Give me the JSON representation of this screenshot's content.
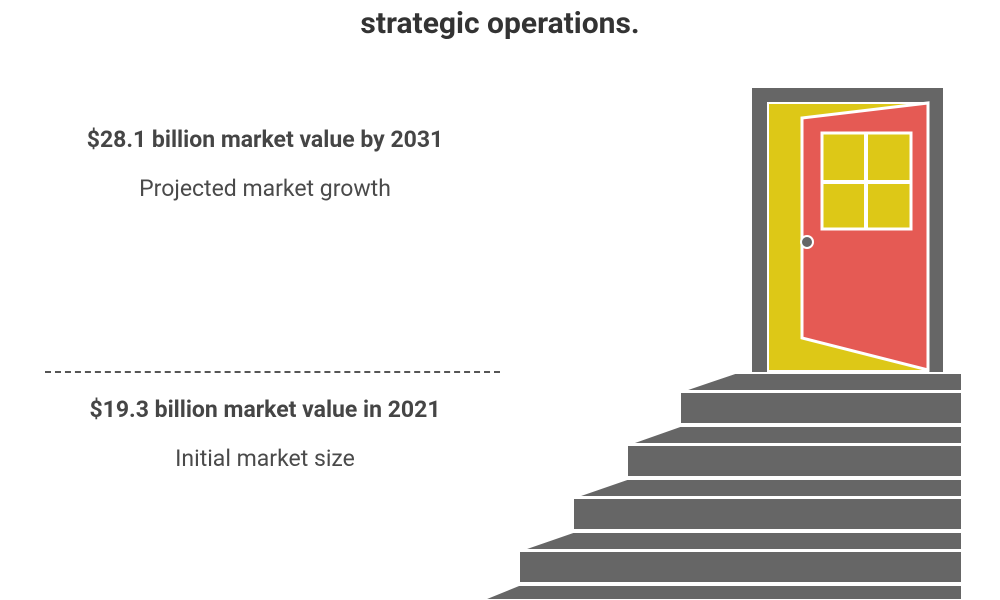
{
  "title": "strategic operations.",
  "items": [
    {
      "heading": "$28.1 billion market value by 2031",
      "description": "Projected market growth"
    },
    {
      "heading": "$19.3 billion market value in 2021",
      "description": "Initial market size"
    }
  ]
}
